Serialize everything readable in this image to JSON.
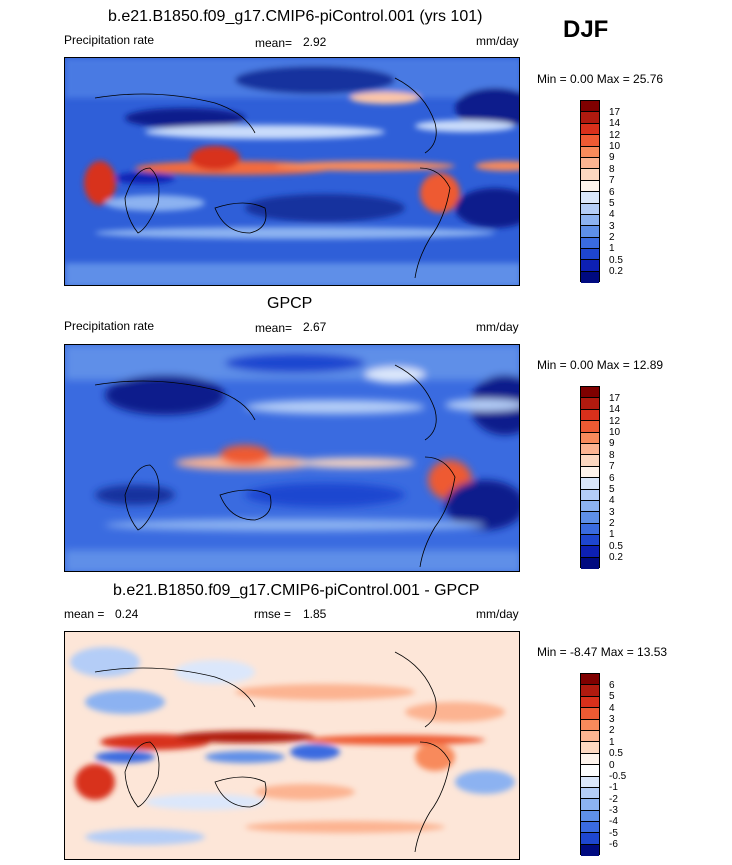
{
  "season": "DJF",
  "panels": [
    {
      "title": "b.e21.B1850.f09_g17.CMIP6-piControl.001 (yrs 101)",
      "left_label": "Precipitation rate",
      "stat1_label": "mean=",
      "stat1_value": "2.92",
      "units": "mm/day",
      "minmax": "Min =   0.00 Max =  25.76",
      "colorbar_labels": [
        "17",
        "14",
        "12",
        "10",
        "9",
        "8",
        "7",
        "6",
        "5",
        "4",
        "3",
        "2",
        "1",
        "0.5",
        "0.2"
      ],
      "colorbar_colors": [
        "#7f0000",
        "#b01a0f",
        "#d8301b",
        "#ee5a33",
        "#f88a5b",
        "#fcb391",
        "#fdd7c0",
        "#fff4ec",
        "#dbe7fb",
        "#b4cdf7",
        "#8cb2f1",
        "#5e8fe8",
        "#3a6be0",
        "#1e46d0",
        "#0d20b4",
        "#000a80"
      ]
    },
    {
      "title": "GPCP",
      "left_label": "Precipitation rate",
      "stat1_label": "mean=",
      "stat1_value": "2.67",
      "units": "mm/day",
      "minmax": "Min =   0.00 Max =  12.89",
      "colorbar_labels": [
        "17",
        "14",
        "12",
        "10",
        "9",
        "8",
        "7",
        "6",
        "5",
        "4",
        "3",
        "2",
        "1",
        "0.5",
        "0.2"
      ],
      "colorbar_colors": [
        "#7f0000",
        "#b01a0f",
        "#d8301b",
        "#ee5a33",
        "#f88a5b",
        "#fcb391",
        "#fdd7c0",
        "#fff4ec",
        "#dbe7fb",
        "#b4cdf7",
        "#8cb2f1",
        "#5e8fe8",
        "#3a6be0",
        "#1e46d0",
        "#0d20b4",
        "#000a80"
      ]
    },
    {
      "title": "b.e21.B1850.f09_g17.CMIP6-piControl.001 - GPCP",
      "left_label": "mean =",
      "left_value": "0.24",
      "stat1_label": "rmse =",
      "stat1_value": "1.85",
      "units": "mm/day",
      "minmax": "Min =  -8.47 Max =  13.53",
      "colorbar_labels": [
        "6",
        "5",
        "4",
        "3",
        "2",
        "1",
        "0.5",
        "0",
        "-0.5",
        "-1",
        "-2",
        "-3",
        "-4",
        "-5",
        "-6"
      ],
      "colorbar_colors": [
        "#7f0000",
        "#b01a0f",
        "#d8301b",
        "#ee5a33",
        "#f88a5b",
        "#fcb391",
        "#fdd7c0",
        "#fff4ec",
        "#ffffff",
        "#dbe7fb",
        "#b4cdf7",
        "#8cb2f1",
        "#5e8fe8",
        "#3a6be0",
        "#1e46d0",
        "#000a80"
      ]
    }
  ]
}
